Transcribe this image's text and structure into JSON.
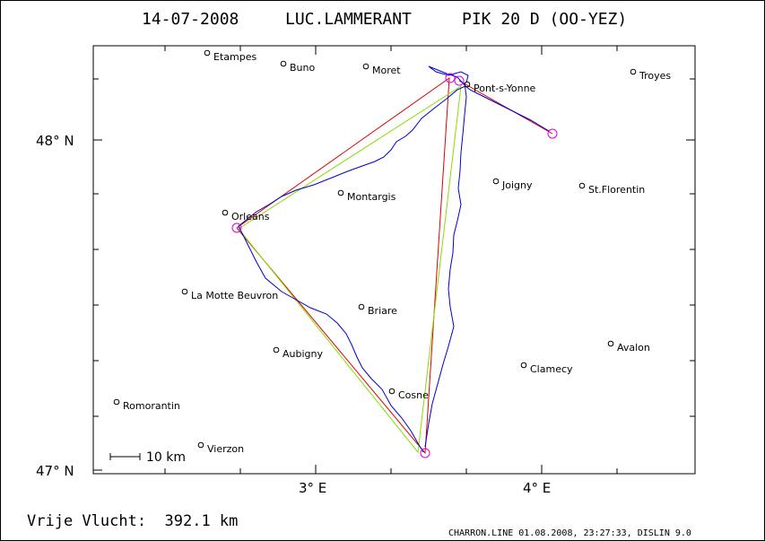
{
  "header": {
    "date": "14-07-2008",
    "pilot": "LUC.LAMMERANT",
    "glider": "PIK 20 D (OO-YEZ)"
  },
  "axes": {
    "lat_labels": [
      "48° N",
      "47° N"
    ],
    "lon_labels": [
      "3° E",
      "4° E"
    ]
  },
  "cities": [
    {
      "name": "Etampes"
    },
    {
      "name": "Buno"
    },
    {
      "name": "Moret"
    },
    {
      "name": "Pont-s-Yonne"
    },
    {
      "name": "Troyes"
    },
    {
      "name": "Montargis"
    },
    {
      "name": "Joigny"
    },
    {
      "name": "St.Florentin"
    },
    {
      "name": "Orleans"
    },
    {
      "name": "La Motte Beuvron"
    },
    {
      "name": "Briare"
    },
    {
      "name": "Aubigny"
    },
    {
      "name": "Avalon"
    },
    {
      "name": "Clamecy"
    },
    {
      "name": "Cosne"
    },
    {
      "name": "Romorantin"
    },
    {
      "name": "Vierzon"
    }
  ],
  "scale_bar": {
    "label": "10 km"
  },
  "footer": {
    "distance": "Vrije Vlucht:  392.1 km",
    "credits": "CHARRON.LINE 01.08.2008, 23:27:33, DISLIN 9.0"
  },
  "colors": {
    "track": "#0000cc",
    "line_red": "#dd0000",
    "line_green": "#88dd00",
    "turnpoint": "#dd00dd",
    "city": "#000000"
  }
}
